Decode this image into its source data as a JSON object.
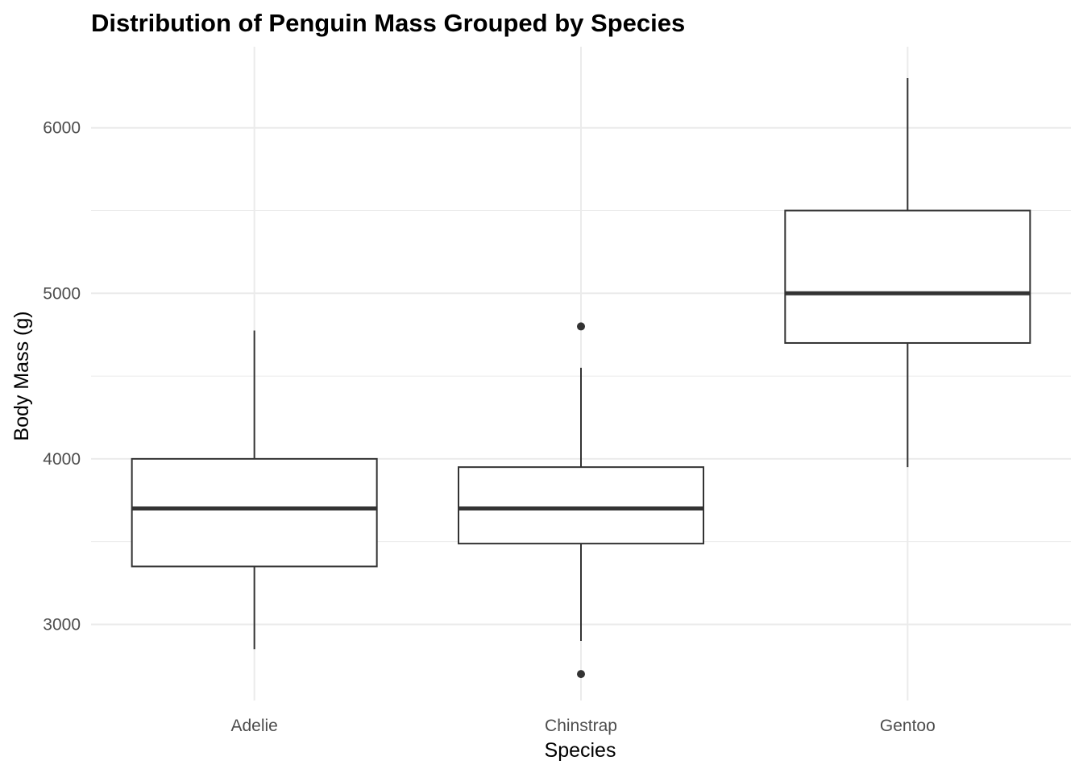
{
  "chart_data": {
    "type": "boxplot",
    "title": "Distribution of Penguin Mass Grouped by Species",
    "xlabel": "Species",
    "ylabel": "Body Mass (g)",
    "categories": [
      "Adelie",
      "Chinstrap",
      "Gentoo"
    ],
    "ylim": [
      2540,
      6490
    ],
    "yticks": [
      3000,
      4000,
      5000,
      6000
    ],
    "yticks_minor": [
      3500,
      4500,
      5500
    ],
    "grid": true,
    "legend": "none",
    "boxes": [
      {
        "category": "Adelie",
        "whisker_low": 2850,
        "q1": 3350,
        "median": 3700,
        "q3": 4000,
        "whisker_high": 4775,
        "outliers": []
      },
      {
        "category": "Chinstrap",
        "whisker_low": 2900,
        "q1": 3488,
        "median": 3700,
        "q3": 3950,
        "whisker_high": 4550,
        "outliers": [
          2700,
          4800
        ]
      },
      {
        "category": "Gentoo",
        "whisker_low": 3950,
        "q1": 4700,
        "median": 5000,
        "q3": 5500,
        "whisker_high": 6300,
        "outliers": []
      }
    ],
    "colors": {
      "box_line": "#333333",
      "box_fill": "#ffffff",
      "grid": "#ebebeb",
      "tick_text": "#4d4d4d",
      "title_text": "#000000"
    }
  }
}
